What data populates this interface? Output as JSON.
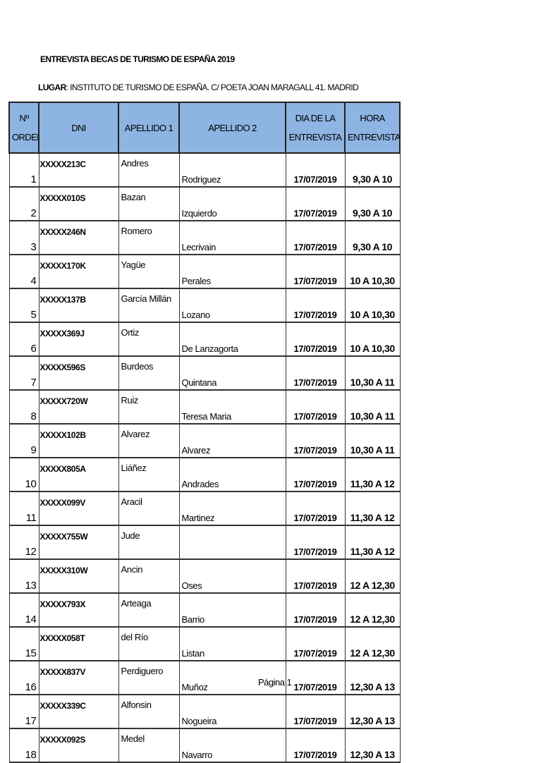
{
  "title": "ENTREVISTA BECAS DE TURISMO DE ESPAÑA 2019",
  "place_label": "LUGAR",
  "place_value": ": INSTITUTO DE TURISMO DE ESPAÑA. C/ POETA JOAN MARAGALL 41. MADRID",
  "headers": {
    "orden_1": "Nº",
    "orden_2": "ORDEN",
    "dni": "DNI",
    "apellido1": "APELLIDO 1",
    "apellido2": "APELLIDO 2",
    "dia_1": "DIA DE LA",
    "dia_2": "ENTREVISTA",
    "hora_1": "HORA",
    "hora_2": "ENTREVISTA"
  },
  "header_color": "#8db4e2",
  "rows": [
    {
      "n": "1",
      "dni": "XXXXX213C",
      "a1": "Andres",
      "a2": "Rodriguez",
      "dia": "17/07/2019",
      "hora": "9,30 A 10"
    },
    {
      "n": "2",
      "dni": "XXXXX010S",
      "a1": "Bazan",
      "a2": "Izquierdo",
      "dia": "17/07/2019",
      "hora": "9,30 A 10"
    },
    {
      "n": "3",
      "dni": "XXXXX246N",
      "a1": "Romero",
      "a2": "Lecrivain",
      "dia": "17/07/2019",
      "hora": "9,30 A 10"
    },
    {
      "n": "4",
      "dni": "XXXXX170K",
      "a1": "Yagüe",
      "a2": "Perales",
      "dia": "17/07/2019",
      "hora": "10 A 10,30"
    },
    {
      "n": "5",
      "dni": "XXXXX137B",
      "a1": "García Millán",
      "a2": "Lozano",
      "dia": "17/07/2019",
      "hora": "10 A 10,30"
    },
    {
      "n": "6",
      "dni": "XXXXX369J",
      "a1": "Ortiz",
      "a2": "De Lanzagorta",
      "dia": "17/07/2019",
      "hora": "10 A 10,30"
    },
    {
      "n": "7",
      "dni": "XXXXX596S",
      "a1": "Burdeos",
      "a2": "Quintana",
      "dia": "17/07/2019",
      "hora": "10,30 A 11"
    },
    {
      "n": "8",
      "dni": "XXXXX720W",
      "a1": "Ruiz",
      "a2": "Teresa Maria",
      "dia": "17/07/2019",
      "hora": "10,30 A 11"
    },
    {
      "n": "9",
      "dni": "XXXXX102B",
      "a1": "Alvarez",
      "a2": "Alvarez",
      "dia": "17/07/2019",
      "hora": "10,30 A 11"
    },
    {
      "n": "10",
      "dni": "XXXXX805A",
      "a1": "Liáñez",
      "a2": "Andrades",
      "dia": "17/07/2019",
      "hora": "11,30 A 12"
    },
    {
      "n": "11",
      "dni": "XXXXX099V",
      "a1": "Aracil",
      "a2": "Martinez",
      "dia": "17/07/2019",
      "hora": "11,30 A 12"
    },
    {
      "n": "12",
      "dni": "XXXXX755W",
      "a1": "Jude",
      "a2": "",
      "dia": "17/07/2019",
      "hora": "11,30 A 12"
    },
    {
      "n": "13",
      "dni": "XXXXX310W",
      "a1": "Ancin",
      "a2": "Oses",
      "dia": "17/07/2019",
      "hora": "12 A 12,30"
    },
    {
      "n": "14",
      "dni": "XXXXX793X",
      "a1": "Arteaga",
      "a2": "Barrio",
      "dia": "17/07/2019",
      "hora": "12 A 12,30"
    },
    {
      "n": "15",
      "dni": "XXXXX058T",
      "a1": "del Río",
      "a2": "Listan",
      "dia": "17/07/2019",
      "hora": "12 A 12,30"
    },
    {
      "n": "16",
      "dni": "XXXXX837V",
      "a1": "Perdiguero",
      "a2": "Muñoz",
      "dia": "17/07/2019",
      "hora": "12,30 A 13"
    },
    {
      "n": "17",
      "dni": "XXXXX339C",
      "a1": "Alfonsin",
      "a2": "Nogueira",
      "dia": "17/07/2019",
      "hora": "12,30 A 13"
    },
    {
      "n": "18",
      "dni": "XXXXX092S",
      "a1": "Medel",
      "a2": "Navarro",
      "dia": "17/07/2019",
      "hora": "12,30 A 13"
    }
  ],
  "page_label": "Página 1"
}
